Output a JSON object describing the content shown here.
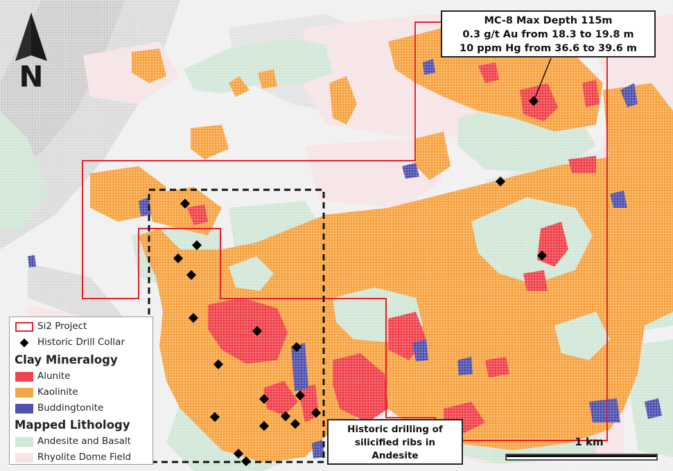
{
  "callouts": {
    "drillhole": {
      "line1": "MC-8 Max Depth 115m",
      "line2": "0.3 g/t Au from 18.3 to 19.8 m",
      "line3": "10 ppm Hg from 36.6 to 39.6 m"
    },
    "ribs": {
      "line1": "Historic drilling of",
      "line2": "silicified ribs in",
      "line3": "Andesite"
    }
  },
  "legend": {
    "project": {
      "label": "Si2 Project",
      "color": "#e8202a"
    },
    "collar": {
      "label": "Historic Drill Collar",
      "color": "#000000"
    },
    "clay_heading": "Clay Mineralogy",
    "clay": [
      {
        "label": "Alunite",
        "color": "#f1434d"
      },
      {
        "label": "Kaolinite",
        "color": "#f7a544"
      },
      {
        "label": "Buddingtonite",
        "color": "#5052b0"
      }
    ],
    "litho_heading": "Mapped Lithology",
    "litho": [
      {
        "label": "Andesite and Basalt",
        "color": "#d2e7d8"
      },
      {
        "label": "Rhyolite Dome Field",
        "color": "#f6e4e6"
      }
    ]
  },
  "scale_bar": {
    "label": "1 km"
  },
  "north_arrow": {
    "label": "N",
    "icon": "north-arrow-icon"
  }
}
